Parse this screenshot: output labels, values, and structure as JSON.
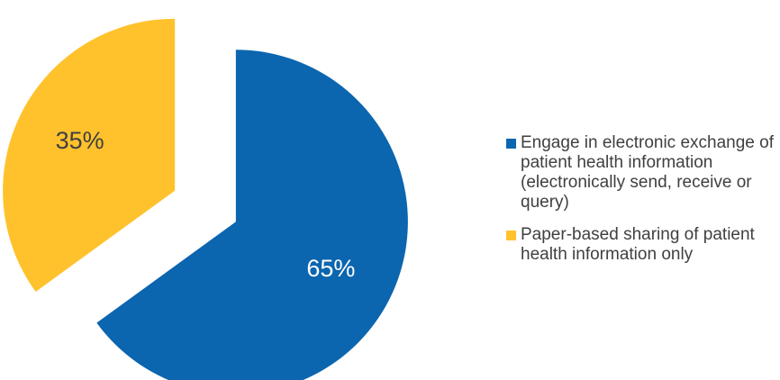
{
  "chart_data": {
    "type": "pie",
    "start_angle_deg": 0,
    "direction": "clockwise",
    "exploded": true,
    "slices": [
      {
        "label": "Engage in electronic exchange of patient health information  (electronically send, receive or query)",
        "value": 65,
        "value_label": "65%",
        "color": "#0B65AF",
        "label_color": "#FFFFFF"
      },
      {
        "label": "Paper-based sharing of patient health information only",
        "value": 35,
        "value_label": "35%",
        "color": "#FFC22D",
        "label_color": "#404040"
      }
    ],
    "legend_position": "right"
  }
}
